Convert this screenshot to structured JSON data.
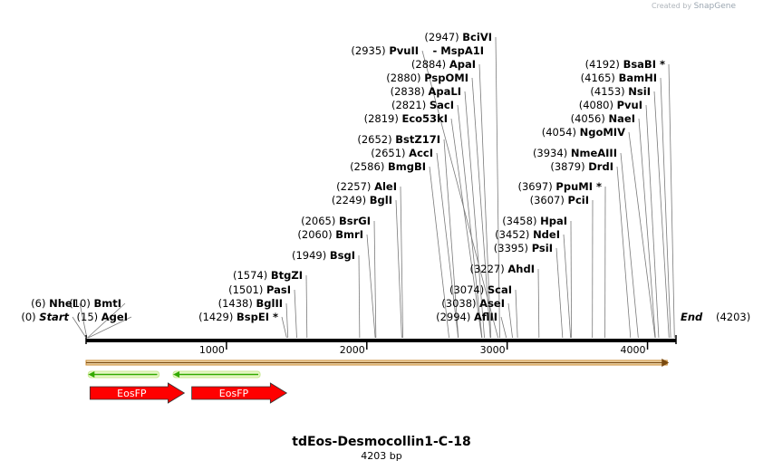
{
  "credit": {
    "prefix": "Created by",
    "brand": "SnapGene"
  },
  "title": "tdEos-Desmocollin1-C-18",
  "subtitle": "4203 bp",
  "sequence_length": 4203,
  "ends": {
    "start": {
      "label": "Start",
      "position": "(0)"
    },
    "end": {
      "label": "End",
      "position": "(4203)"
    }
  },
  "ruler_ticks": [
    {
      "value": 1000,
      "label": "1000"
    },
    {
      "value": 2000,
      "label": "2000"
    },
    {
      "value": 3000,
      "label": "3000"
    },
    {
      "value": 4000,
      "label": "4000"
    }
  ],
  "sites": [
    {
      "name": "NheI",
      "pos": 6,
      "pos_label": "(6)"
    },
    {
      "name": "AgeI",
      "pos": 15,
      "pos_label": "(15)"
    },
    {
      "name": "BmtI",
      "pos": 10,
      "pos_label": "(10)"
    },
    {
      "name": "BspEI *",
      "pos": 1429,
      "pos_label": "(1429)"
    },
    {
      "name": "BglII",
      "pos": 1438,
      "pos_label": "(1438)"
    },
    {
      "name": "PasI",
      "pos": 1501,
      "pos_label": "(1501)"
    },
    {
      "name": "BtgZI",
      "pos": 1574,
      "pos_label": "(1574)"
    },
    {
      "name": "BsgI",
      "pos": 1949,
      "pos_label": "(1949)"
    },
    {
      "name": "BmrI",
      "pos": 2060,
      "pos_label": "(2060)"
    },
    {
      "name": "BsrGI",
      "pos": 2065,
      "pos_label": "(2065)"
    },
    {
      "name": "BglI",
      "pos": 2249,
      "pos_label": "(2249)"
    },
    {
      "name": "AleI",
      "pos": 2257,
      "pos_label": "(2257)"
    },
    {
      "name": "BmgBI",
      "pos": 2586,
      "pos_label": "(2586)"
    },
    {
      "name": "AccI",
      "pos": 2651,
      "pos_label": "(2651)"
    },
    {
      "name": "BstZ17I",
      "pos": 2652,
      "pos_label": "(2652)"
    },
    {
      "name": "Eco53kI",
      "pos": 2819,
      "pos_label": "(2819)"
    },
    {
      "name": "SacI",
      "pos": 2821,
      "pos_label": "(2821)"
    },
    {
      "name": "ApaLI",
      "pos": 2838,
      "pos_label": "(2838)"
    },
    {
      "name": "PspOMI",
      "pos": 2880,
      "pos_label": "(2880)"
    },
    {
      "name": "ApaI",
      "pos": 2884,
      "pos_label": "(2884)"
    },
    {
      "name": "PvuII",
      "pos": 2935,
      "pos_label": "(2935)"
    },
    {
      "name": "- MspA1I",
      "pos": 2935,
      "pos_label": ""
    },
    {
      "name": "BciVI",
      "pos": 2947,
      "pos_label": "(2947)"
    },
    {
      "name": "AflII",
      "pos": 2994,
      "pos_label": "(2994)"
    },
    {
      "name": "AseI",
      "pos": 3038,
      "pos_label": "(3038)"
    },
    {
      "name": "ScaI",
      "pos": 3074,
      "pos_label": "(3074)"
    },
    {
      "name": "AhdI",
      "pos": 3227,
      "pos_label": "(3227)"
    },
    {
      "name": "PsiI",
      "pos": 3395,
      "pos_label": "(3395)"
    },
    {
      "name": "NdeI",
      "pos": 3452,
      "pos_label": "(3452)"
    },
    {
      "name": "HpaI",
      "pos": 3458,
      "pos_label": "(3458)"
    },
    {
      "name": "PciI",
      "pos": 3607,
      "pos_label": "(3607)"
    },
    {
      "name": "PpuMI *",
      "pos": 3697,
      "pos_label": "(3697)"
    },
    {
      "name": "DrdI",
      "pos": 3879,
      "pos_label": "(3879)"
    },
    {
      "name": "NmeAIII",
      "pos": 3934,
      "pos_label": "(3934)"
    },
    {
      "name": "NgoMIV",
      "pos": 4054,
      "pos_label": "(4054)"
    },
    {
      "name": "NaeI",
      "pos": 4056,
      "pos_label": "(4056)"
    },
    {
      "name": "PvuI",
      "pos": 4080,
      "pos_label": "(4080)"
    },
    {
      "name": "NsiI",
      "pos": 4153,
      "pos_label": "(4153)"
    },
    {
      "name": "BamHI",
      "pos": 4165,
      "pos_label": "(4165)"
    },
    {
      "name": "BsaBI *",
      "pos": 4192,
      "pos_label": "(4192)"
    }
  ],
  "features": [
    {
      "name": "EosFP",
      "start": 15,
      "end": 700,
      "color": "#ff0000"
    },
    {
      "name": "EosFP",
      "start": 740,
      "end": 1429,
      "color": "#ff0000"
    }
  ],
  "orf_bar": {
    "start": 0,
    "end": 4140,
    "color": "#c8872c",
    "fill": "#f5deb3"
  },
  "green_orfs": [
    {
      "start": 15,
      "end": 520,
      "color": "#33aa00"
    },
    {
      "start": 620,
      "end": 1240,
      "color": "#33aa00"
    }
  ],
  "colors": {
    "backbone": "#000000",
    "connector": "#7a7a7a"
  }
}
